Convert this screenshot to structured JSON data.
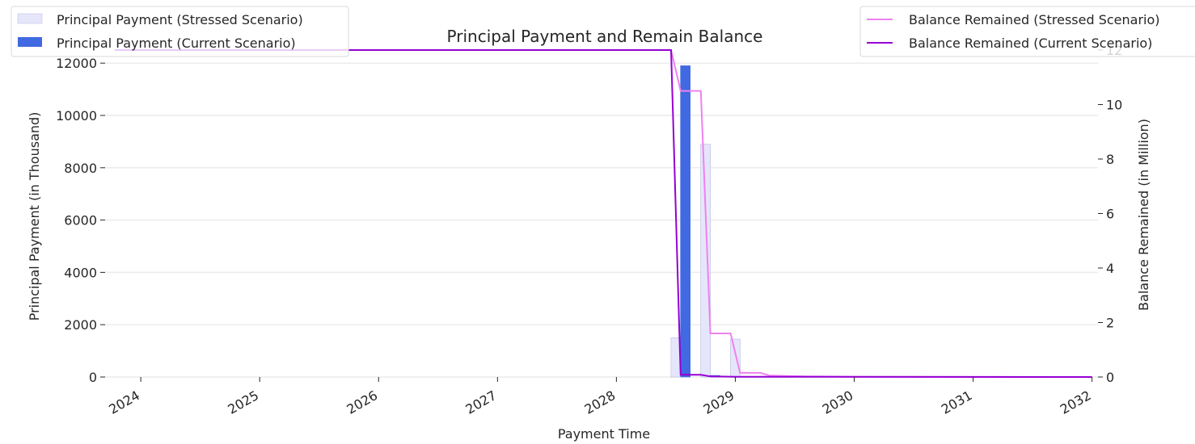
{
  "chart_data": {
    "type": "bar",
    "title": "Principal Payment and Remain Balance",
    "xlabel": "Payment Time",
    "ylabel": "Principal Payment (in Thousand)",
    "y2label": "Balance Remained (in Million)",
    "xlim": [
      2023.7,
      2032.05
    ],
    "ylim": [
      0,
      12500
    ],
    "y2lim": [
      0,
      12
    ],
    "x_ticks": [
      "2024",
      "2025",
      "2026",
      "2027",
      "2028",
      "2029",
      "2030",
      "2031",
      "2032"
    ],
    "y_ticks": [
      "0",
      "2000",
      "4000",
      "6000",
      "8000",
      "10000",
      "12000"
    ],
    "y2_ticks": [
      "0",
      "2",
      "4",
      "6",
      "8",
      "10",
      "12"
    ],
    "grid": true,
    "bar_series": [
      {
        "name": "Principal Payment (Stressed Scenario)",
        "color": "#e6e6fa",
        "edge": "#b8b8e0",
        "bars": [
          {
            "x": 2028.5,
            "value": 1500
          },
          {
            "x": 2028.75,
            "value": 8900
          },
          {
            "x": 2029.0,
            "value": 1450
          },
          {
            "x": 2029.25,
            "value": 30
          }
        ]
      },
      {
        "name": "Principal Payment (Current Scenario)",
        "color": "#4169e1",
        "edge": "#4169e1",
        "bars": [
          {
            "x": 2028.58,
            "value": 11900
          },
          {
            "x": 2028.83,
            "value": 60
          }
        ]
      }
    ],
    "line_series": [
      {
        "name": "Balance Remained (Stressed Scenario)",
        "color": "#ee82ee",
        "points": [
          [
            2023.78,
            12
          ],
          [
            2028.46,
            12
          ],
          [
            2028.54,
            10.5
          ],
          [
            2028.71,
            10.5
          ],
          [
            2028.79,
            1.6
          ],
          [
            2028.96,
            1.6
          ],
          [
            2029.04,
            0.15
          ],
          [
            2029.21,
            0.15
          ],
          [
            2029.29,
            0.05
          ],
          [
            2029.6,
            0.02
          ],
          [
            2030.0,
            0.01
          ],
          [
            2032.0,
            0
          ]
        ]
      },
      {
        "name": "Balance Remained (Current Scenario)",
        "color": "#9400d3",
        "points": [
          [
            2023.78,
            12
          ],
          [
            2028.46,
            12
          ],
          [
            2028.54,
            0.08
          ],
          [
            2028.71,
            0.08
          ],
          [
            2028.79,
            0.02
          ],
          [
            2029.0,
            0.01
          ],
          [
            2032.0,
            0
          ]
        ]
      }
    ],
    "legend_left": [
      "Principal Payment (Stressed Scenario)",
      "Principal Payment (Current Scenario)"
    ],
    "legend_right": [
      "Balance Remained (Stressed Scenario)",
      "Balance Remained (Current Scenario)"
    ]
  }
}
